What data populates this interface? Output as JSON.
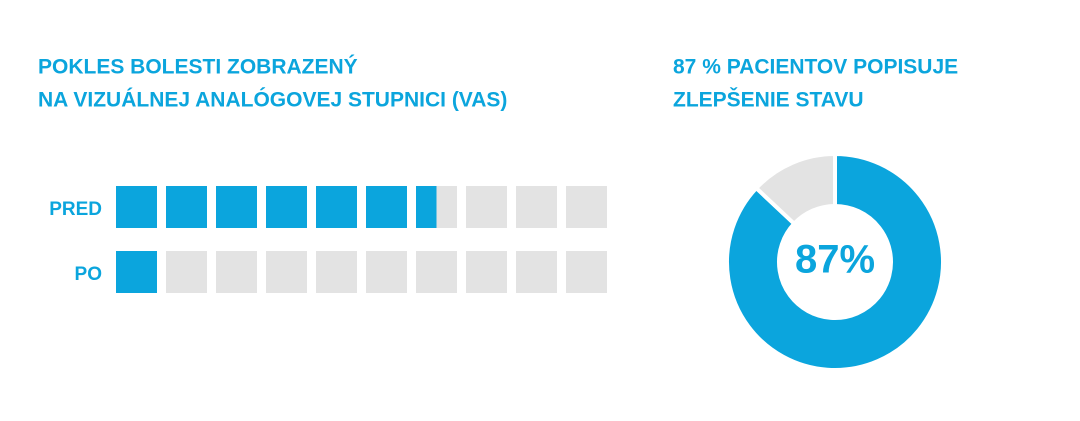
{
  "chart_data": [
    {
      "type": "bar",
      "title": [
        "POKLES BOLESTI ZOBRAZENÝ",
        "NA VIZUÁLNEJ ANALÓGOVEJ STUPNICI (VAS)"
      ],
      "categories": [
        "PRED",
        "PO"
      ],
      "values": [
        6.5,
        1
      ],
      "xlim": [
        0,
        10
      ],
      "color": "#0ba5dd"
    },
    {
      "type": "pie",
      "title": [
        "87 % PACIENTOV POPISUJE",
        "ZLEPŠENIE STAVU"
      ],
      "categories": [
        null,
        null
      ],
      "values": [
        87,
        13
      ],
      "value_labels": [
        "87%",
        null
      ],
      "colors": [
        "#0ba5dd",
        "#e3e3e3"
      ],
      "donut": true
    }
  ]
}
